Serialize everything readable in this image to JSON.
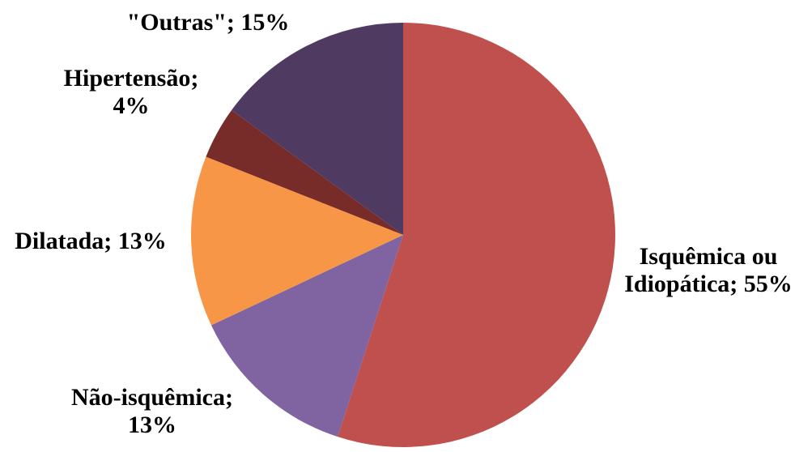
{
  "chart_data": {
    "type": "pie",
    "start_angle_deg": 90,
    "direction": "clockwise",
    "slices": [
      {
        "label_lines": [
          "Isquêmica ou",
          "Idiopática; 55%"
        ],
        "category": "Isquêmica ou Idiopática",
        "value": 55,
        "color": "#c0504d"
      },
      {
        "label_lines": [
          "Não-isquêmica;",
          "13%"
        ],
        "category": "Não-isquêmica",
        "value": 13,
        "color": "#8064a2"
      },
      {
        "label_lines": [
          "Dilatada; 13%"
        ],
        "category": "Dilatada",
        "value": 13,
        "color": "#f79646"
      },
      {
        "label_lines": [
          "Hipertensão;",
          "4%"
        ],
        "category": "Hipertensão",
        "value": 4,
        "color": "#772c2a"
      },
      {
        "label_lines": [
          "\"Outras\"; 15%"
        ],
        "category": "\"Outras\"",
        "value": 15,
        "color": "#4f3b62"
      }
    ]
  }
}
